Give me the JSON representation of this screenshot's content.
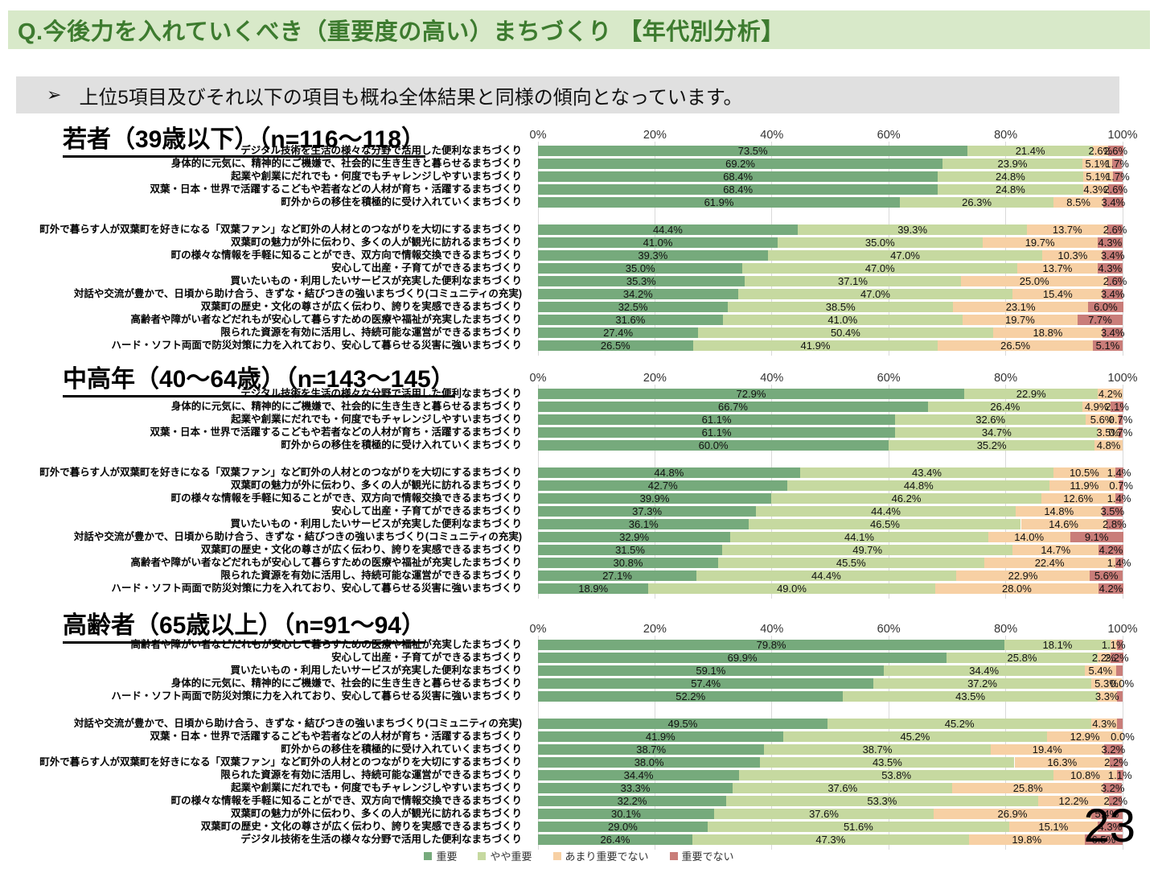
{
  "page": {
    "title": "Q.今後力を入れていくべき（重要度の高い）まちづくり 【年代別分析】",
    "note": "上位5項目及びそれ以下の項目も概ね全体結果と同様の傾向となっています。",
    "note_arrow": "➢",
    "page_number": "23"
  },
  "colors": {
    "series": [
      "#76aa7c",
      "#c6d9a0",
      "#f7d0a4",
      "#c97d79"
    ],
    "header_bg": "#d8e9c9",
    "header_text": "#3d7b2f",
    "note_bg": "#e0e0e0",
    "grid": "#d9d9d9"
  },
  "axis_ticks": [
    "0%",
    "20%",
    "40%",
    "60%",
    "80%",
    "100%"
  ],
  "legend": [
    {
      "label": "重要",
      "color": "#76aa7c"
    },
    {
      "label": "やや重要",
      "color": "#c6d9a0"
    },
    {
      "label": "あまり重要でない",
      "color": "#f7d0a4"
    },
    {
      "label": "重要でない",
      "color": "#c97d79"
    }
  ],
  "chart_data": [
    {
      "type": "bar",
      "orientation": "horizontal-stacked",
      "title": "若者（39歳以下）（n=116～118）",
      "series_names": [
        "重要",
        "やや重要",
        "あまり重要でない",
        "重要でない"
      ],
      "xlim": [
        0,
        100
      ],
      "group_break_after": 5,
      "rows": [
        {
          "label": "デジタル技術を生活の様々な分野で活用した便利なまちづくり",
          "values": [
            73.5,
            21.4,
            2.6,
            2.6
          ],
          "labels": [
            "73.5%",
            "21.4%",
            "2.6%",
            "2.6%"
          ]
        },
        {
          "label": "身体的に元気に、精神的にご機嫌で、社会的に生き生きと暮らせるまちづくり",
          "values": [
            69.2,
            23.9,
            5.1,
            1.7
          ],
          "labels": [
            "69.2%",
            "23.9%",
            "5.1%",
            "1.7%"
          ]
        },
        {
          "label": "起業や創業にだれでも・何度でもチャレンジしやすいまちづくり",
          "values": [
            68.4,
            24.8,
            5.1,
            1.7
          ],
          "labels": [
            "68.4%",
            "24.8%",
            "5.1%",
            "1.7%"
          ]
        },
        {
          "label": "双葉・日本・世界で活躍するこどもや若者などの人材が育ち・活躍するまちづくり",
          "values": [
            68.4,
            24.8,
            4.3,
            2.6
          ],
          "labels": [
            "68.4%",
            "24.8%",
            "4.3%",
            "2.6%"
          ]
        },
        {
          "label": "町外からの移住を積極的に受け入れていくまちづくり",
          "values": [
            61.9,
            26.3,
            8.5,
            3.4
          ],
          "labels": [
            "61.9%",
            "26.3%",
            "8.5%",
            "3.4%"
          ]
        },
        {
          "label": "町外で暮らす人が双葉町を好きになる「双葉ファン」など町外の人材とのつながりを大切にするまちづくり",
          "values": [
            44.4,
            39.3,
            13.7,
            2.6
          ],
          "labels": [
            "44.4%",
            "39.3%",
            "13.7%",
            "2.6%"
          ]
        },
        {
          "label": "双葉町の魅力が外に伝わり、多くの人が観光に訪れるまちづくり",
          "values": [
            41.0,
            35.0,
            19.7,
            4.3
          ],
          "labels": [
            "41.0%",
            "35.0%",
            "19.7%",
            "4.3%"
          ]
        },
        {
          "label": "町の様々な情報を手軽に知ることができ、双方向で情報交換できるまちづくり",
          "values": [
            39.3,
            47.0,
            10.3,
            3.4
          ],
          "labels": [
            "39.3%",
            "47.0%",
            "10.3%",
            "3.4%"
          ]
        },
        {
          "label": "安心して出産・子育てができるまちづくり",
          "values": [
            35.0,
            47.0,
            13.7,
            4.3
          ],
          "labels": [
            "35.0%",
            "47.0%",
            "13.7%",
            "4.3%"
          ]
        },
        {
          "label": "買いたいもの・利用したいサービスが充実した便利なまちづくり",
          "values": [
            35.3,
            37.1,
            25.0,
            2.6
          ],
          "labels": [
            "35.3%",
            "37.1%",
            "25.0%",
            "2.6%"
          ]
        },
        {
          "label": "対話や交流が豊かで、日頃から助け合う、きずな・結びつきの強いまちづくり(コミュニティの充実)",
          "values": [
            34.2,
            47.0,
            15.4,
            3.4
          ],
          "labels": [
            "34.2%",
            "47.0%",
            "15.4%",
            "3.4%"
          ]
        },
        {
          "label": "双葉町の歴史・文化の尊さが広く伝わり、誇りを実感できるまちづくり",
          "values": [
            32.5,
            38.5,
            23.1,
            6.0
          ],
          "labels": [
            "32.5%",
            "38.5%",
            "23.1%",
            "6.0%"
          ]
        },
        {
          "label": "高齢者や障がい者などだれもが安心して暮らすための医療や福祉が充実したまちづくり",
          "values": [
            31.6,
            41.0,
            19.7,
            7.7
          ],
          "labels": [
            "31.6%",
            "41.0%",
            "19.7%",
            "7.7%"
          ]
        },
        {
          "label": "限られた資源を有効に活用し、持続可能な運営ができるまちづくり",
          "values": [
            27.4,
            50.4,
            18.8,
            3.4
          ],
          "labels": [
            "27.4%",
            "50.4%",
            "18.8%",
            "3.4%"
          ]
        },
        {
          "label": "ハード・ソフト両面で防災対策に力を入れており、安心して暮らせる災害に強いまちづくり",
          "values": [
            26.5,
            41.9,
            26.5,
            5.1
          ],
          "labels": [
            "26.5%",
            "41.9%",
            "26.5%",
            "5.1%"
          ]
        }
      ]
    },
    {
      "type": "bar",
      "orientation": "horizontal-stacked",
      "title": "中高年（40～64歳）（n=143～145）",
      "series_names": [
        "重要",
        "やや重要",
        "あまり重要でない",
        "重要でない"
      ],
      "xlim": [
        0,
        100
      ],
      "group_break_after": 5,
      "rows": [
        {
          "label": "デジタル技術を生活の様々な分野で活用した便利なまちづくり",
          "values": [
            72.9,
            22.9,
            4.2,
            0.0
          ],
          "labels": [
            "72.9%",
            "22.9%",
            "4.2%",
            ""
          ]
        },
        {
          "label": "身体的に元気に、精神的にご機嫌で、社会的に生き生きと暮らせるまちづくり",
          "values": [
            66.7,
            26.4,
            4.9,
            2.1
          ],
          "labels": [
            "66.7%",
            "26.4%",
            "4.9%",
            "2.1%"
          ]
        },
        {
          "label": "起業や創業にだれでも・何度でもチャレンジしやすいまちづくり",
          "values": [
            61.1,
            32.6,
            5.6,
            0.7
          ],
          "labels": [
            "61.1%",
            "32.6%",
            "5.6%",
            "0.7%"
          ]
        },
        {
          "label": "双葉・日本・世界で活躍するこどもや若者などの人材が育ち・活躍するまちづくり",
          "values": [
            61.1,
            34.7,
            3.5,
            0.7
          ],
          "labels": [
            "61.1%",
            "34.7%",
            "3.5%",
            "0.7%"
          ]
        },
        {
          "label": "町外からの移住を積極的に受け入れていくまちづくり",
          "values": [
            60.0,
            35.2,
            4.8,
            0.0
          ],
          "labels": [
            "60.0%",
            "35.2%",
            "4.8%",
            ""
          ]
        },
        {
          "label": "町外で暮らす人が双葉町を好きになる「双葉ファン」など町外の人材とのつながりを大切にするまちづくり",
          "values": [
            44.8,
            43.4,
            10.5,
            1.4
          ],
          "labels": [
            "44.8%",
            "43.4%",
            "10.5%",
            "1.4%"
          ]
        },
        {
          "label": "双葉町の魅力が外に伝わり、多くの人が観光に訪れるまちづくり",
          "values": [
            42.7,
            44.8,
            11.9,
            0.7
          ],
          "labels": [
            "42.7%",
            "44.8%",
            "11.9%",
            "0.7%"
          ]
        },
        {
          "label": "町の様々な情報を手軽に知ることができ、双方向で情報交換できるまちづくり",
          "values": [
            39.9,
            46.2,
            12.6,
            1.4
          ],
          "labels": [
            "39.9%",
            "46.2%",
            "12.6%",
            "1.4%"
          ]
        },
        {
          "label": "安心して出産・子育てができるまちづくり",
          "values": [
            37.3,
            44.4,
            14.8,
            3.5
          ],
          "labels": [
            "37.3%",
            "44.4%",
            "14.8%",
            "3.5%"
          ]
        },
        {
          "label": "買いたいもの・利用したいサービスが充実した便利なまちづくり",
          "values": [
            36.1,
            46.5,
            14.6,
            2.8
          ],
          "labels": [
            "36.1%",
            "46.5%",
            "14.6%",
            "2.8%"
          ]
        },
        {
          "label": "対話や交流が豊かで、日頃から助け合う、きずな・結びつきの強いまちづくり(コミュニティの充実)",
          "values": [
            32.9,
            44.1,
            14.0,
            9.1
          ],
          "labels": [
            "32.9%",
            "44.1%",
            "14.0%",
            "9.1%"
          ]
        },
        {
          "label": "双葉町の歴史・文化の尊さが広く伝わり、誇りを実感できるまちづくり",
          "values": [
            31.5,
            49.7,
            14.7,
            4.2
          ],
          "labels": [
            "31.5%",
            "49.7%",
            "14.7%",
            "4.2%"
          ]
        },
        {
          "label": "高齢者や障がい者などだれもが安心して暮らすための医療や福祉が充実したまちづくり",
          "values": [
            30.8,
            45.5,
            22.4,
            1.4
          ],
          "labels": [
            "30.8%",
            "45.5%",
            "22.4%",
            "1.4%"
          ]
        },
        {
          "label": "限られた資源を有効に活用し、持続可能な運営ができるまちづくり",
          "values": [
            27.1,
            44.4,
            22.9,
            5.6
          ],
          "labels": [
            "27.1%",
            "44.4%",
            "22.9%",
            "5.6%"
          ]
        },
        {
          "label": "ハード・ソフト両面で防災対策に力を入れており、安心して暮らせる災害に強いまちづくり",
          "values": [
            18.9,
            49.0,
            28.0,
            4.2
          ],
          "labels": [
            "18.9%",
            "49.0%",
            "28.0%",
            "4.2%"
          ]
        }
      ]
    },
    {
      "type": "bar",
      "orientation": "horizontal-stacked",
      "title": "高齢者（65歳以上）（n=91～94）",
      "series_names": [
        "重要",
        "やや重要",
        "あまり重要でない",
        "重要でない"
      ],
      "xlim": [
        0,
        100
      ],
      "group_break_after": 5,
      "rows": [
        {
          "label": "高齢者や障がい者などだれもが安心して暮らすための医療や福祉が充実したまちづくり",
          "values": [
            79.8,
            18.1,
            1.1,
            1.0
          ],
          "labels": [
            "79.8%",
            "18.1%",
            "1.1%",
            ""
          ]
        },
        {
          "label": "安心して出産・子育てができるまちづくり",
          "values": [
            69.9,
            25.8,
            2.2,
            2.2
          ],
          "labels": [
            "69.9%",
            "25.8%",
            "2.2%",
            "2.2%"
          ]
        },
        {
          "label": "買いたいもの・利用したいサービスが充実した便利なまちづくり",
          "values": [
            59.1,
            34.4,
            5.4,
            1.1
          ],
          "labels": [
            "59.1%",
            "34.4%",
            "5.4%",
            ""
          ]
        },
        {
          "label": "身体的に元気に、精神的にご機嫌で、社会的に生き生きと暮らせるまちづくり",
          "values": [
            57.4,
            37.2,
            5.3,
            0.0
          ],
          "labels": [
            "57.4%",
            "37.2%",
            "5.3%",
            "0.0%"
          ]
        },
        {
          "label": "ハード・ソフト両面で防災対策に力を入れており、安心して暮らせる災害に強いまちづくり",
          "values": [
            52.2,
            43.5,
            3.3,
            1.0
          ],
          "labels": [
            "52.2%",
            "43.5%",
            "3.3%",
            ""
          ]
        },
        {
          "label": "対話や交流が豊かで、日頃から助け合う、きずな・結びつきの強いまちづくり(コミュニティの充実)",
          "values": [
            49.5,
            45.2,
            4.3,
            1.0
          ],
          "labels": [
            "49.5%",
            "45.2%",
            "4.3%",
            ""
          ]
        },
        {
          "label": "双葉・日本・世界で活躍するこどもや若者などの人材が育ち・活躍するまちづくり",
          "values": [
            41.9,
            45.2,
            12.9,
            0.0
          ],
          "labels": [
            "41.9%",
            "45.2%",
            "12.9%",
            "0.0%"
          ]
        },
        {
          "label": "町外からの移住を積極的に受け入れていくまちづくり",
          "values": [
            38.7,
            38.7,
            19.4,
            3.2
          ],
          "labels": [
            "38.7%",
            "38.7%",
            "19.4%",
            "3.2%"
          ]
        },
        {
          "label": "町外で暮らす人が双葉町を好きになる「双葉ファン」など町外の人材とのつながりを大切にするまちづくり",
          "values": [
            38.0,
            43.5,
            16.3,
            2.2
          ],
          "labels": [
            "38.0%",
            "43.5%",
            "16.3%",
            "2.2%"
          ]
        },
        {
          "label": "限られた資源を有効に活用し、持続可能な運営ができるまちづくり",
          "values": [
            34.4,
            53.8,
            10.8,
            1.1
          ],
          "labels": [
            "34.4%",
            "53.8%",
            "10.8%",
            "1.1%"
          ]
        },
        {
          "label": "起業や創業にだれでも・何度でもチャレンジしやすいまちづくり",
          "values": [
            33.3,
            37.6,
            25.8,
            3.2
          ],
          "labels": [
            "33.3%",
            "37.6%",
            "25.8%",
            "3.2%"
          ]
        },
        {
          "label": "町の様々な情報を手軽に知ることができ、双方向で情報交換できるまちづくり",
          "values": [
            32.2,
            53.3,
            12.2,
            2.2
          ],
          "labels": [
            "32.2%",
            "53.3%",
            "12.2%",
            "2.2%"
          ]
        },
        {
          "label": "双葉町の魅力が外に伝わり、多くの人が観光に訪れるまちづくり",
          "values": [
            30.1,
            37.6,
            26.9,
            5.4
          ],
          "labels": [
            "30.1%",
            "37.6%",
            "26.9%",
            "5.4%"
          ]
        },
        {
          "label": "双葉町の歴史・文化の尊さが広く伝わり、誇りを実感できるまちづくり",
          "values": [
            29.0,
            51.6,
            15.1,
            4.3
          ],
          "labels": [
            "29.0%",
            "51.6%",
            "15.1%",
            "4.3%"
          ]
        },
        {
          "label": "デジタル技術を生活の様々な分野で活用した便利なまちづくり",
          "values": [
            26.4,
            47.3,
            19.8,
            6.5
          ],
          "labels": [
            "26.4%",
            "47.3%",
            "19.8%",
            "6.5%"
          ]
        }
      ]
    }
  ]
}
